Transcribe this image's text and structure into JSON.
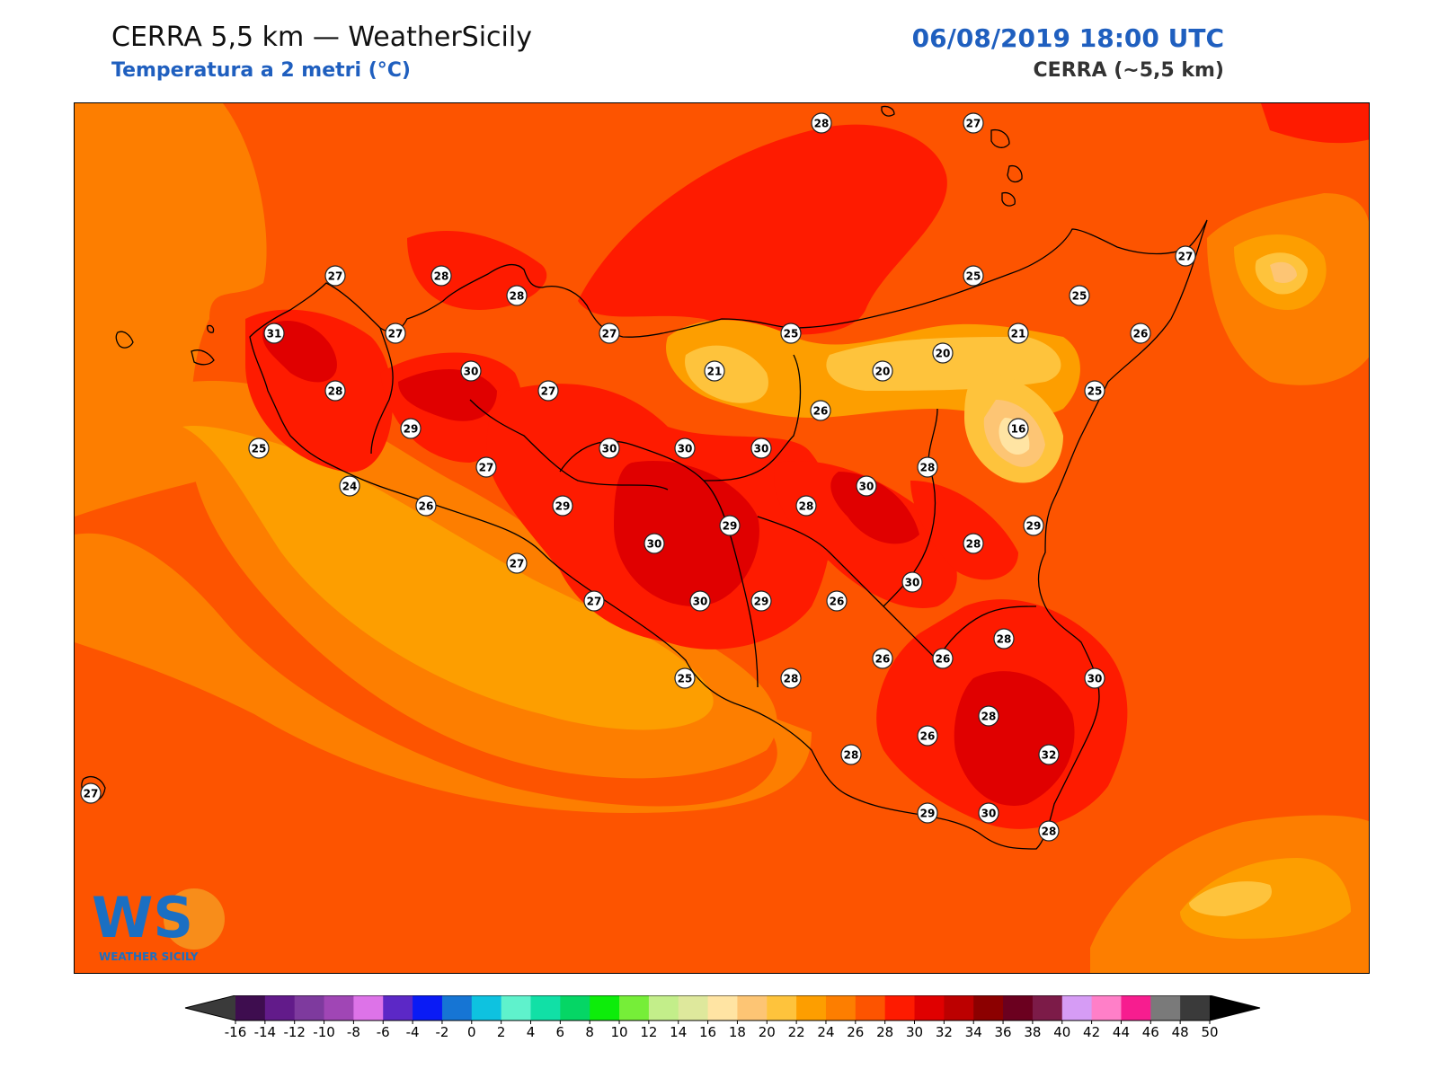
{
  "header": {
    "title": "CERRA 5,5 km — WeatherSicily",
    "subtitle": "Temperatura a 2 metri (°C)",
    "datetime": "06/08/2019 18:00 UTC",
    "model": "CERRA (~5,5 km)"
  },
  "logo": {
    "text": "WS",
    "caption": "WEATHER SICILY"
  },
  "colorbar": {
    "ticks": [
      -16,
      -14,
      -12,
      -10,
      -8,
      -6,
      -4,
      -2,
      0,
      2,
      4,
      6,
      8,
      10,
      12,
      14,
      16,
      18,
      20,
      22,
      24,
      26,
      28,
      30,
      32,
      34,
      36,
      38,
      40,
      42,
      44,
      46,
      48,
      50
    ],
    "colors": [
      "#3e0d4f",
      "#621b8a",
      "#7e3a9e",
      "#a046b5",
      "#dd73e8",
      "#5c28c6",
      "#0a1bf5",
      "#1675d4",
      "#0ec2e0",
      "#5ff2cc",
      "#11e0a6",
      "#05d665",
      "#0ded0a",
      "#76ee38",
      "#c3ee8a",
      "#dee89c",
      "#ffe4a3",
      "#fdc574",
      "#fec33c",
      "#fd9e00",
      "#fd7e00",
      "#fd5400",
      "#fe1b00",
      "#e00000",
      "#bc0000",
      "#8c0000",
      "#6b001f",
      "#7c1b48",
      "#d69cf5",
      "#ff7fc8",
      "#f71d8f",
      "#7a7a7a",
      "#3a3a3a"
    ],
    "under_color": "#3a3a3a",
    "over_color": "#000000"
  },
  "stations": [
    {
      "value": "28"
    },
    {
      "value": "27"
    },
    {
      "value": "27"
    },
    {
      "value": "28"
    },
    {
      "value": "28"
    },
    {
      "value": "25"
    },
    {
      "value": "25"
    },
    {
      "value": "27"
    },
    {
      "value": "31"
    },
    {
      "value": "27"
    },
    {
      "value": "27"
    },
    {
      "value": "25"
    },
    {
      "value": "21"
    },
    {
      "value": "26"
    },
    {
      "value": "30"
    },
    {
      "value": "27"
    },
    {
      "value": "21"
    },
    {
      "value": "20"
    },
    {
      "value": "20"
    },
    {
      "value": "28"
    },
    {
      "value": "25"
    },
    {
      "value": "29"
    },
    {
      "value": "26"
    },
    {
      "value": "16"
    },
    {
      "value": "25"
    },
    {
      "value": "30"
    },
    {
      "value": "30"
    },
    {
      "value": "30"
    },
    {
      "value": "27"
    },
    {
      "value": "24"
    },
    {
      "value": "28"
    },
    {
      "value": "26"
    },
    {
      "value": "30"
    },
    {
      "value": "29"
    },
    {
      "value": "29"
    },
    {
      "value": "28"
    },
    {
      "value": "29"
    },
    {
      "value": "30"
    },
    {
      "value": "28"
    },
    {
      "value": "27"
    },
    {
      "value": "30"
    },
    {
      "value": "27"
    },
    {
      "value": "30"
    },
    {
      "value": "29"
    },
    {
      "value": "26"
    },
    {
      "value": "28"
    },
    {
      "value": "26"
    },
    {
      "value": "26"
    },
    {
      "value": "30"
    },
    {
      "value": "25"
    },
    {
      "value": "28"
    },
    {
      "value": "28"
    },
    {
      "value": "26"
    },
    {
      "value": "32"
    },
    {
      "value": "28"
    },
    {
      "value": "27"
    },
    {
      "value": "29"
    },
    {
      "value": "30"
    },
    {
      "value": "28"
    }
  ]
}
